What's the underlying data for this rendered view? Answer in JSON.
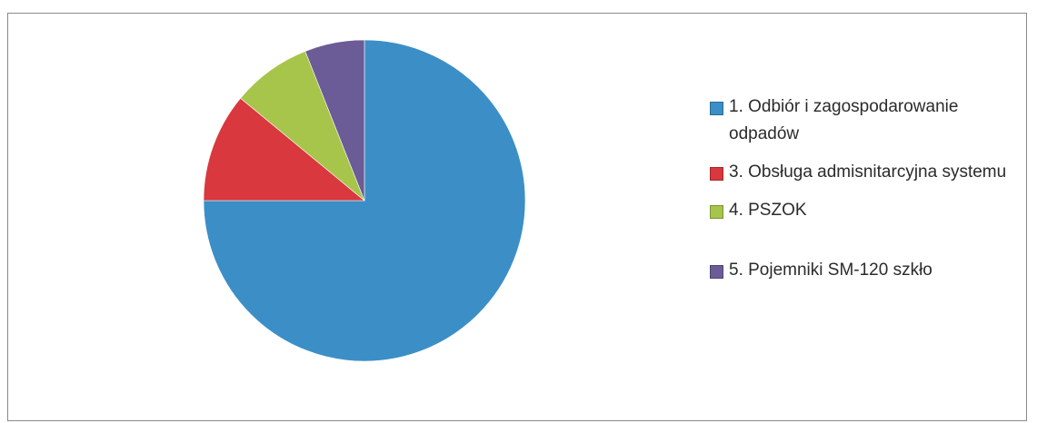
{
  "chart_data": {
    "type": "pie",
    "title": "",
    "start_angle_deg": 0,
    "direction": "clockwise",
    "slices": [
      {
        "label": "1. Odbiór i zagospodarowanie odpadów",
        "value": 75,
        "color": "#3b8fc6"
      },
      {
        "label": "3. Obsługa admisnitarcyjna systemu",
        "value": 11,
        "color": "#d9383e"
      },
      {
        "label": "4. PSZOK",
        "value": 8,
        "color": "#a7c54a"
      },
      {
        "label": "5. Pojemniki SM-120 szkło",
        "value": 6,
        "color": "#6b5c97"
      }
    ],
    "legend": {
      "position": "right",
      "entries": [
        "1. Odbiór i zagospodarowanie odpadów",
        "3. Obsługa admisnitarcyjna systemu",
        "4. PSZOK",
        "5. Pojemniki SM-120 szkło"
      ]
    }
  }
}
